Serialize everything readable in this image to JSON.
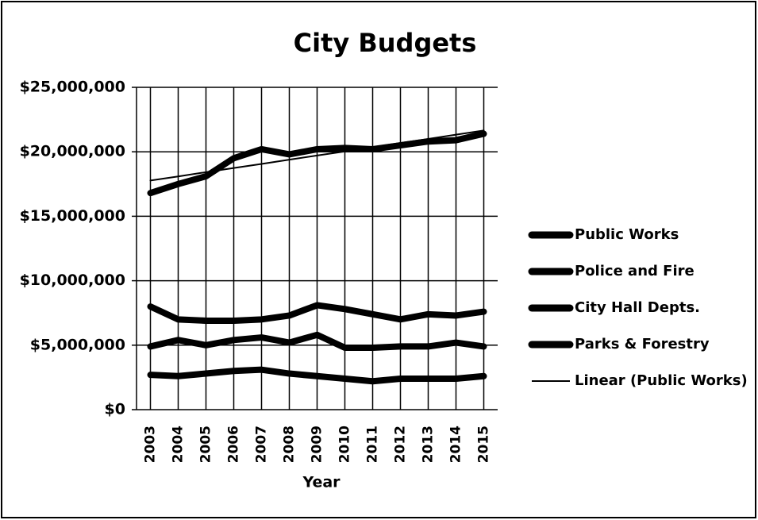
{
  "chart_data": {
    "type": "line",
    "title": "City Budgets",
    "x_label": "Year",
    "categories": [
      "2003",
      "2004",
      "2005",
      "2006",
      "2007",
      "2008",
      "2009",
      "2010",
      "2011",
      "2012",
      "2013",
      "2014",
      "2015"
    ],
    "series": [
      {
        "name": "Public Works",
        "color": "#000000",
        "values": [
          16800000,
          17500000,
          18100000,
          19500000,
          20200000,
          19800000,
          20200000,
          20300000,
          20200000,
          20500000,
          20800000,
          20900000,
          21400000
        ]
      },
      {
        "name": "Police and Fire",
        "color": "#000000",
        "values": [
          8000000,
          7000000,
          6900000,
          6900000,
          7000000,
          7300000,
          8100000,
          7800000,
          7400000,
          7000000,
          7400000,
          7300000,
          7600000
        ]
      },
      {
        "name": "City Hall Depts.",
        "color": "#000000",
        "values": [
          4900000,
          5400000,
          5000000,
          5400000,
          5600000,
          5200000,
          5800000,
          4800000,
          4800000,
          4900000,
          4900000,
          5200000,
          4900000
        ]
      },
      {
        "name": "Parks & Forestry",
        "color": "#000000",
        "values": [
          2700000,
          2600000,
          2800000,
          3000000,
          3100000,
          2800000,
          2600000,
          2400000,
          2200000,
          2400000,
          2400000,
          2400000,
          2600000
        ]
      },
      {
        "name": "Linear (Public Works)",
        "color": "#000000",
        "trendline": true,
        "values": [
          17770000,
          18090000,
          18420000,
          18740000,
          19060000,
          19390000,
          19710000,
          20030000,
          20360000,
          20680000,
          21000000,
          21330000,
          21650000
        ]
      }
    ],
    "ylim": [
      0,
      25000000
    ],
    "yticks": [
      {
        "value": 0,
        "label": "$0"
      },
      {
        "value": 5000000,
        "label": "$5,000,000"
      },
      {
        "value": 10000000,
        "label": "$10,000,000"
      },
      {
        "value": 15000000,
        "label": "$15,000,000"
      },
      {
        "value": 20000000,
        "label": "$20,000,000"
      },
      {
        "value": 25000000,
        "label": "$25,000,000"
      }
    ],
    "grid": true,
    "legend": "right"
  }
}
